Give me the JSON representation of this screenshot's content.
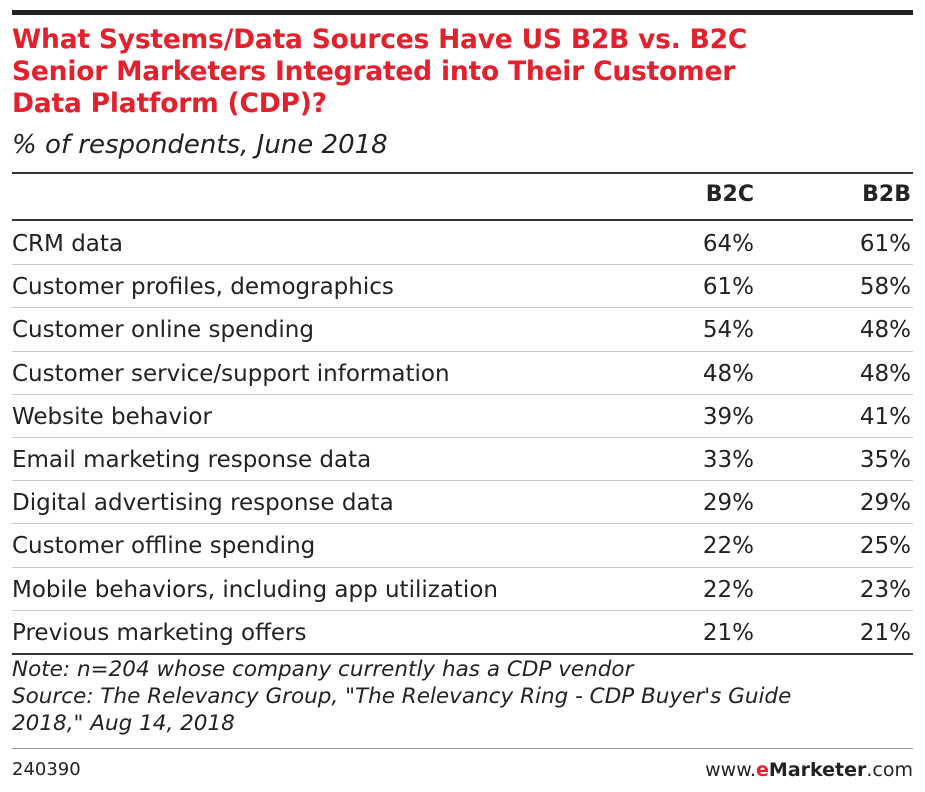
{
  "chart_data": {
    "type": "table",
    "title": "What Systems/Data Sources Have US B2B vs. B2C Senior Marketers Integrated into Their Customer Data Platform (CDP)?",
    "title_lines": [
      "What Systems/Data Sources Have US B2B vs. B2C",
      "Senior Marketers Integrated into Their Customer",
      "Data Platform (CDP)?"
    ],
    "subtitle": "% of respondents, June 2018",
    "columns": [
      "B2C",
      "B2B"
    ],
    "rows": [
      {
        "label": "CRM data",
        "b2c": "64%",
        "b2b": "61%"
      },
      {
        "label": "Customer profiles, demographics",
        "b2c": "61%",
        "b2b": "58%"
      },
      {
        "label": "Customer online spending",
        "b2c": "54%",
        "b2b": "48%"
      },
      {
        "label": "Customer service/support information",
        "b2c": "48%",
        "b2b": "48%"
      },
      {
        "label": "Website behavior",
        "b2c": "39%",
        "b2b": "41%"
      },
      {
        "label": "Email marketing response data",
        "b2c": "33%",
        "b2b": "35%"
      },
      {
        "label": "Digital advertising response data",
        "b2c": "29%",
        "b2b": "29%"
      },
      {
        "label": "Customer offline spending",
        "b2c": "22%",
        "b2b": "25%"
      },
      {
        "label": "Mobile behaviors, including app utilization",
        "b2c": "22%",
        "b2b": "23%"
      },
      {
        "label": "Previous marketing offers",
        "b2c": "21%",
        "b2b": "21%"
      }
    ],
    "series": [
      {
        "name": "B2C",
        "values": [
          64,
          61,
          54,
          48,
          39,
          33,
          29,
          22,
          22,
          21
        ]
      },
      {
        "name": "B2B",
        "values": [
          61,
          58,
          48,
          48,
          41,
          35,
          29,
          25,
          23,
          21
        ]
      }
    ],
    "note": "Note: n=204 whose company currently has a CDP vendor",
    "source_lines": [
      "Source: The Relevancy Group, \"The Relevancy Ring - CDP Buyer's Guide",
      "2018,\" Aug 14, 2018"
    ]
  },
  "footer": {
    "chart_id": "240390",
    "brand_prefix": "www.",
    "brand_e": "e",
    "brand_name": "Marketer",
    "brand_suffix": ".com"
  },
  "colors": {
    "title": "#e4202c",
    "text": "#222222",
    "rule": "#333333"
  }
}
